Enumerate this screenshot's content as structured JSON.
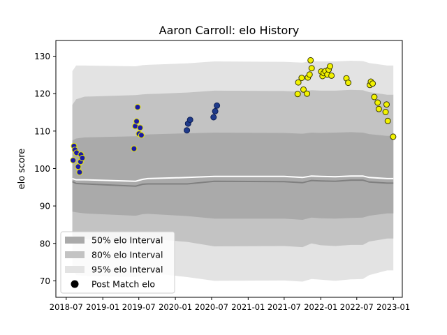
{
  "chart_data": {
    "type": "scatter",
    "title": "Aaron Carroll: elo History",
    "xlabel": "",
    "ylabel": "elo score",
    "x_range": [
      "2018-05-10",
      "2023-02-15"
    ],
    "ylim": [
      65.6,
      134.2
    ],
    "x_ticks": [
      {
        "date": "2018-07-01",
        "label": "2018-07"
      },
      {
        "date": "2019-01-01",
        "label": "2019-01"
      },
      {
        "date": "2019-07-01",
        "label": "2019-07"
      },
      {
        "date": "2020-01-01",
        "label": "2020-01"
      },
      {
        "date": "2020-07-01",
        "label": "2020-07"
      },
      {
        "date": "2021-01-01",
        "label": "2021-01"
      },
      {
        "date": "2021-07-01",
        "label": "2021-07"
      },
      {
        "date": "2022-01-01",
        "label": "2022-01"
      },
      {
        "date": "2022-07-01",
        "label": "2022-07"
      },
      {
        "date": "2023-01-01",
        "label": "2023-01"
      }
    ],
    "y_ticks": [
      70,
      80,
      90,
      100,
      110,
      120,
      130
    ],
    "grid": false,
    "legend_position": "bottom-left",
    "legend": [
      {
        "label": "50% elo Interval",
        "kind": "band",
        "color": "#aaaaaa"
      },
      {
        "label": "80% elo Interval",
        "kind": "band",
        "color": "#c3c3c3"
      },
      {
        "label": "95% elo Interval",
        "kind": "band",
        "color": "#e3e3e3"
      },
      {
        "label": "Post Match elo",
        "kind": "marker",
        "color": "#000000"
      }
    ],
    "colors": {
      "band_50": "#aaaaaa",
      "band_80": "#c3c3c3",
      "band_95": "#e3e3e3",
      "mean_line": "#ffffff",
      "median_line": "#808080",
      "navy_fill": "#1f3a8a",
      "navy_edge": "#0e1f55",
      "blue_fill": "#1a1aa6",
      "yellow_fill": "#f2f200",
      "yellow_edge": "#3a3a00"
    },
    "bands": {
      "dates": [
        "2018-08-01",
        "2018-08-20",
        "2018-10-01",
        "2019-06-15",
        "2019-07-20",
        "2019-08-15",
        "2019-10-15",
        "2020-03-01",
        "2020-07-15",
        "2021-07-01",
        "2021-10-01",
        "2021-11-15",
        "2022-01-01",
        "2022-03-15",
        "2022-06-01",
        "2022-08-01",
        "2022-09-01",
        "2022-12-01",
        "2023-01-01"
      ],
      "p95_low": [
        73.5,
        71.5,
        71.3,
        71.0,
        71.6,
        72.0,
        71.8,
        71.0,
        70.0,
        70.1,
        69.8,
        70.5,
        70.3,
        70.0,
        70.4,
        70.5,
        71.5,
        72.8,
        72.8
      ],
      "p80_low": [
        82.0,
        81.5,
        81.2,
        80.8,
        81.2,
        81.3,
        81.0,
        80.4,
        79.2,
        79.3,
        79.0,
        80.0,
        79.5,
        79.3,
        79.6,
        79.6,
        80.5,
        81.3,
        81.3
      ],
      "p50_low": [
        88.5,
        88.3,
        88.0,
        87.4,
        87.8,
        87.9,
        87.7,
        87.3,
        86.6,
        86.6,
        86.3,
        86.9,
        86.7,
        86.6,
        86.8,
        86.9,
        87.4,
        88.0,
        88.0
      ],
      "median": [
        96.5,
        96.0,
        95.9,
        95.3,
        95.8,
        95.9,
        95.9,
        95.9,
        96.6,
        96.5,
        96.2,
        96.8,
        96.7,
        96.6,
        96.9,
        96.9,
        96.4,
        96.1,
        96.1
      ],
      "mean": [
        97.3,
        97.0,
        97.0,
        96.6,
        97.1,
        97.3,
        97.4,
        97.6,
        97.9,
        97.9,
        97.6,
        98.0,
        97.9,
        97.8,
        98.0,
        98.0,
        97.6,
        97.3,
        97.3
      ],
      "p50_high": [
        107.5,
        108.0,
        108.3,
        108.6,
        109.0,
        109.1,
        109.2,
        109.4,
        109.6,
        109.5,
        109.3,
        109.6,
        109.5,
        109.6,
        109.7,
        109.6,
        109.2,
        108.7,
        108.7
      ],
      "p80_high": [
        117.0,
        118.5,
        119.2,
        119.6,
        119.8,
        119.9,
        120.0,
        120.3,
        120.8,
        120.7,
        120.5,
        120.9,
        120.8,
        120.8,
        121.0,
        120.9,
        120.4,
        119.7,
        119.7
      ],
      "p95_high": [
        126.0,
        127.5,
        127.5,
        127.3,
        127.6,
        127.7,
        127.8,
        128.1,
        128.6,
        128.5,
        128.3,
        128.7,
        128.6,
        128.6,
        128.8,
        128.7,
        128.2,
        127.5,
        127.5
      ]
    },
    "series": [
      {
        "group": "2018",
        "fill": "#1a1aa6",
        "edge": "#e6e600",
        "points": [
          {
            "x": "2018-08-09",
            "y": 106.0
          },
          {
            "x": "2018-08-14",
            "y": 105.0
          },
          {
            "x": "2018-08-22",
            "y": 104.2
          },
          {
            "x": "2018-08-05",
            "y": 102.2
          },
          {
            "x": "2018-08-30",
            "y": 100.5
          },
          {
            "x": "2018-09-06",
            "y": 99.0
          },
          {
            "x": "2018-09-11",
            "y": 101.8
          },
          {
            "x": "2018-09-13",
            "y": 103.7
          },
          {
            "x": "2018-09-20",
            "y": 102.8
          }
        ]
      },
      {
        "group": "2019",
        "fill": "#1a1aa6",
        "edge": "#e6e600",
        "points": [
          {
            "x": "2019-06-07",
            "y": 105.3
          },
          {
            "x": "2019-06-13",
            "y": 111.3
          },
          {
            "x": "2019-06-20",
            "y": 112.6
          },
          {
            "x": "2019-06-25",
            "y": 116.4
          },
          {
            "x": "2019-07-02",
            "y": 109.3
          },
          {
            "x": "2019-07-08",
            "y": 110.9
          },
          {
            "x": "2019-07-14",
            "y": 108.9
          }
        ]
      },
      {
        "group": "2020",
        "fill": "#1f3a8a",
        "edge": "#0e1f55",
        "points": [
          {
            "x": "2020-02-28",
            "y": 110.2
          },
          {
            "x": "2020-03-05",
            "y": 112.0
          },
          {
            "x": "2020-03-15",
            "y": 113.0
          },
          {
            "x": "2020-07-11",
            "y": 113.7
          },
          {
            "x": "2020-07-19",
            "y": 115.3
          },
          {
            "x": "2020-07-28",
            "y": 116.8
          }
        ]
      },
      {
        "group": "2021-2022",
        "fill": "#f2f200",
        "edge": "#3a3a00",
        "points": [
          {
            "x": "2021-09-07",
            "y": 119.9
          },
          {
            "x": "2021-09-10",
            "y": 123.0
          },
          {
            "x": "2021-09-27",
            "y": 124.2
          },
          {
            "x": "2021-10-06",
            "y": 121.1
          },
          {
            "x": "2021-10-24",
            "y": 120.0
          },
          {
            "x": "2021-10-28",
            "y": 124.3
          },
          {
            "x": "2021-11-06",
            "y": 125.1
          },
          {
            "x": "2021-11-11",
            "y": 128.9
          },
          {
            "x": "2021-11-16",
            "y": 126.8
          },
          {
            "x": "2022-01-03",
            "y": 125.9
          },
          {
            "x": "2022-01-10",
            "y": 124.7
          },
          {
            "x": "2022-01-16",
            "y": 125.5
          },
          {
            "x": "2022-01-24",
            "y": 126.0
          },
          {
            "x": "2022-02-03",
            "y": 125.1
          },
          {
            "x": "2022-02-10",
            "y": 126.4
          },
          {
            "x": "2022-02-17",
            "y": 127.3
          },
          {
            "x": "2022-02-24",
            "y": 124.8
          },
          {
            "x": "2022-05-10",
            "y": 124.1
          },
          {
            "x": "2022-05-19",
            "y": 122.9
          },
          {
            "x": "2022-09-05",
            "y": 122.3
          },
          {
            "x": "2022-09-10",
            "y": 123.2
          },
          {
            "x": "2022-09-19",
            "y": 122.7
          },
          {
            "x": "2022-09-27",
            "y": 119.1
          },
          {
            "x": "2022-10-14",
            "y": 117.6
          },
          {
            "x": "2022-10-20",
            "y": 115.9
          },
          {
            "x": "2022-11-23",
            "y": 115.1
          },
          {
            "x": "2022-11-28",
            "y": 117.1
          },
          {
            "x": "2022-12-04",
            "y": 112.7
          },
          {
            "x": "2022-12-31",
            "y": 108.5
          }
        ]
      }
    ]
  }
}
